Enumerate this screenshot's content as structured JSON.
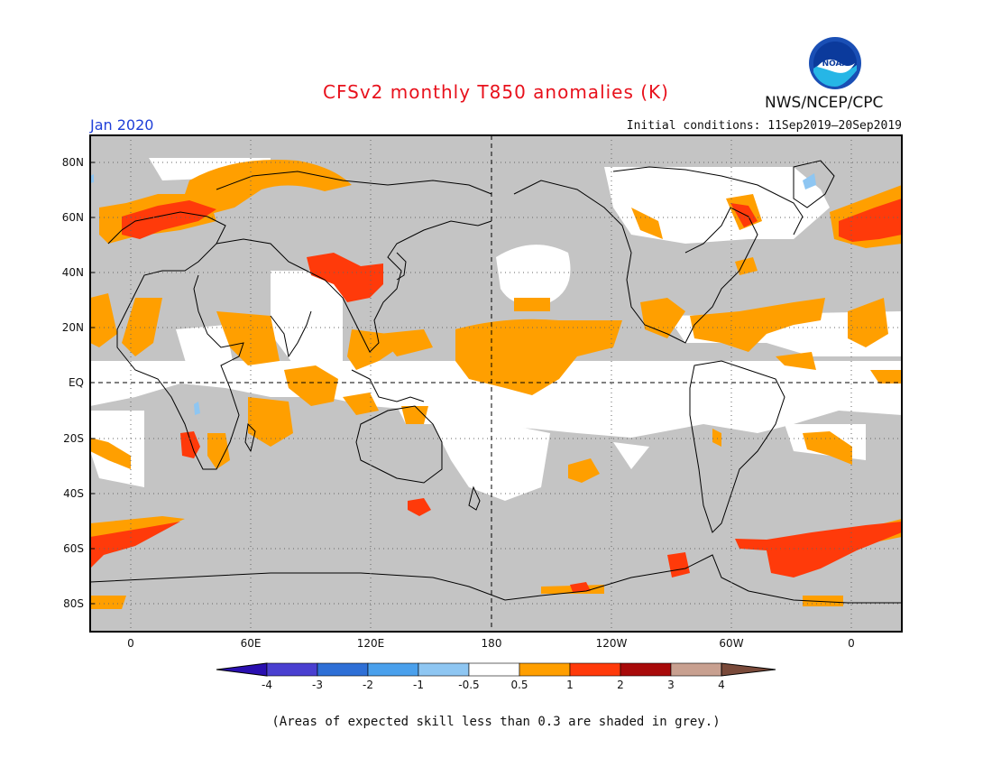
{
  "header": {
    "title": "CFSv2 monthly T850 anomalies (K)",
    "month": "Jan 2020",
    "initial_conditions": "Initial conditions: 11Sep2019–20Sep2019",
    "agency": "NWS/NCEP/CPC",
    "logo_text": "NOAA"
  },
  "map": {
    "lat_labels": [
      "80N",
      "60N",
      "40N",
      "20N",
      "EQ",
      "20S",
      "40S",
      "60S",
      "80S"
    ],
    "lon_labels": [
      "0",
      "60E",
      "120E",
      "180",
      "120W",
      "60W",
      "0"
    ],
    "grey_meaning": "expected skill less than 0.3"
  },
  "colorbar": {
    "tick_labels": [
      "-4",
      "-3",
      "-2",
      "-1",
      "-0.5",
      "0.5",
      "1",
      "2",
      "3",
      "4"
    ],
    "colors": [
      "#2a0fb0",
      "#4a3fd0",
      "#2e6fd6",
      "#4aa0ec",
      "#8ec6f2",
      "#ffffff",
      "#ff9f00",
      "#ff3a0a",
      "#a80a0a",
      "#c8a090",
      "#7a4a3a"
    ]
  },
  "colors": {
    "grey": "#c4c4c4",
    "orange": "#ff9f00",
    "red": "#ff3a0a",
    "lightblue": "#8ec6f2",
    "title": "#e8111c",
    "month": "#1f3fd8"
  },
  "caption": "(Areas of expected skill less than 0.3 are shaded in grey.)"
}
